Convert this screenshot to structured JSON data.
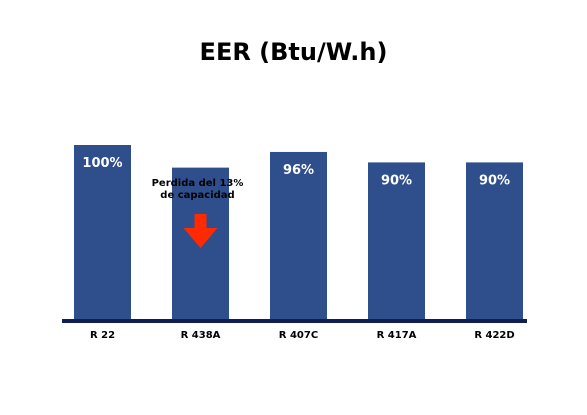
{
  "chart_data": {
    "type": "bar",
    "title": "EER (Btu/W.h)",
    "categories": [
      "R 22",
      "R 438A",
      "R 407C",
      "R 417A",
      "R 422D"
    ],
    "values": [
      100,
      87,
      96,
      90,
      90
    ],
    "data_labels": [
      "100%",
      "",
      "96%",
      "90%",
      "90%"
    ],
    "ylim": [
      0,
      100
    ],
    "grid": false,
    "colors": {
      "bar": "#2e4e8c",
      "axis": "#0f1f4f",
      "arrow": "#ff2a00",
      "label": "#ffffff"
    },
    "annotation": {
      "category": "R 438A",
      "lines": [
        "Perdida del 13%",
        "de capacidad"
      ],
      "icon": "down-arrow-icon"
    }
  }
}
